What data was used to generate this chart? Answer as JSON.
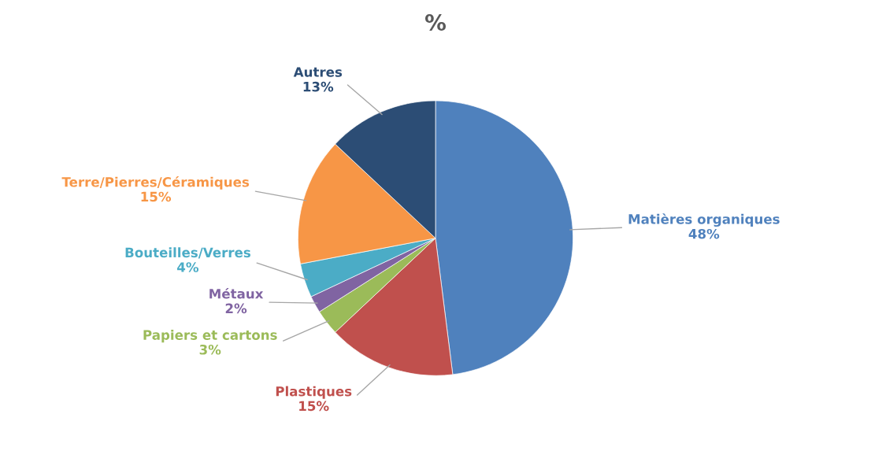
{
  "chart_data": {
    "type": "pie",
    "title": "%",
    "categories": [
      "Matières organiques",
      "Plastiques",
      "Papiers et cartons",
      "Métaux",
      "Bouteilles/Verres",
      "Terre/Pierres/Céramiques",
      "Autres"
    ],
    "values": [
      48,
      15,
      3,
      2,
      4,
      15,
      13
    ],
    "value_labels": [
      "48%",
      "15%",
      "3%",
      "2%",
      "4%",
      "15%",
      "13%"
    ],
    "colors": [
      "#4f81bd",
      "#c0504d",
      "#9bbb59",
      "#8064a2",
      "#4bacc6",
      "#f79646",
      "#2c4d75"
    ],
    "legend": false
  }
}
